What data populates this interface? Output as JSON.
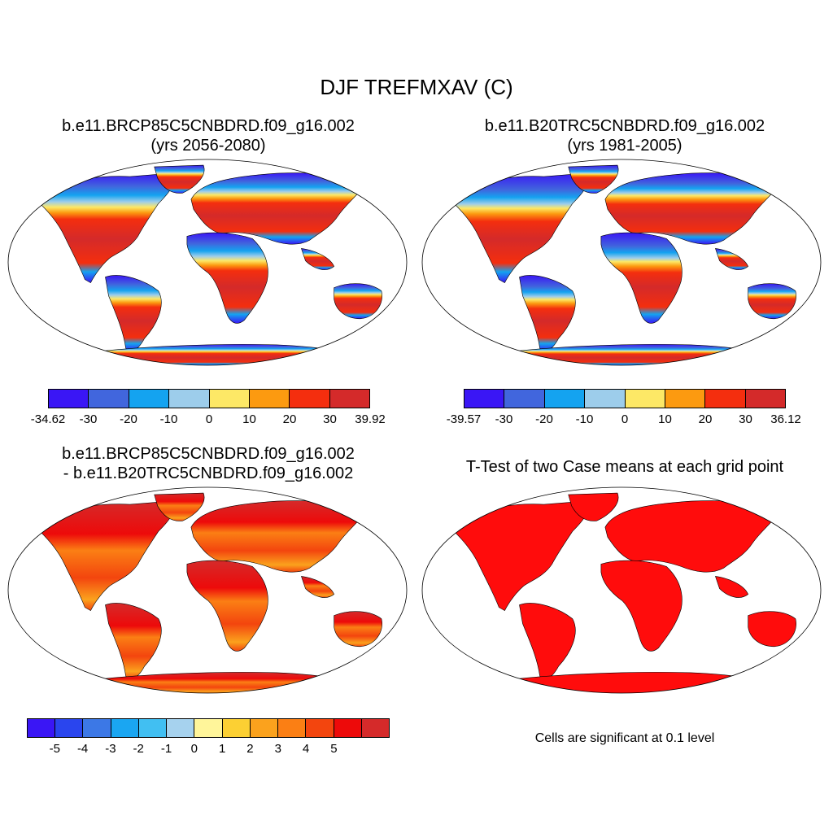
{
  "title": "DJF TREFMXAV (C)",
  "panels": [
    {
      "line1": "b.e11.BRCP85C5CNBDRD.f09_g16.002",
      "line2": "(yrs 2056-2080)"
    },
    {
      "line1": "b.e11.B20TRC5CNBDRD.f09_g16.002",
      "line2": "(yrs 1981-2005)"
    },
    {
      "line1": "b.e11.BRCP85C5CNBDRD.f09_g16.002",
      "line2": "- b.e11.B20TRC5CNBDRD.f09_g16.002"
    },
    {
      "line1": "T-Test of two Case means at each grid point",
      "line2": ""
    }
  ],
  "colorbars": [
    {
      "colors": [
        "#3a16f5",
        "#4166dd",
        "#14a3f0",
        "#9dcdeb",
        "#fde866",
        "#fc9a10",
        "#f42e0e",
        "#d42a2a"
      ],
      "labels": [
        "-34.62",
        "-30",
        "-20",
        "-10",
        "0",
        "10",
        "20",
        "30",
        "39.92"
      ]
    },
    {
      "colors": [
        "#3a16f5",
        "#4166dd",
        "#14a3f0",
        "#9dcdeb",
        "#fde866",
        "#fc9a10",
        "#f42e0e",
        "#d42a2a"
      ],
      "labels": [
        "-39.57",
        "-30",
        "-20",
        "-10",
        "0",
        "10",
        "20",
        "30",
        "36.12"
      ]
    },
    {
      "colors": [
        "#3a16f5",
        "#2a45ee",
        "#3c78e6",
        "#1aa6f2",
        "#41bff2",
        "#a6d2ee",
        "#fff59a",
        "#fcd033",
        "#fba21d",
        "#fb7f14",
        "#f3450e",
        "#ed0a0a",
        "#d52a2a"
      ],
      "labels": [
        "-5",
        "-4",
        "-3",
        "-2",
        "-1",
        "0",
        "1",
        "2",
        "3",
        "4",
        "5"
      ]
    }
  ],
  "significance_note": "Cells are significant at 0.1 level",
  "colors": {
    "significant": "#ff0c0c",
    "outline": "#000000"
  }
}
